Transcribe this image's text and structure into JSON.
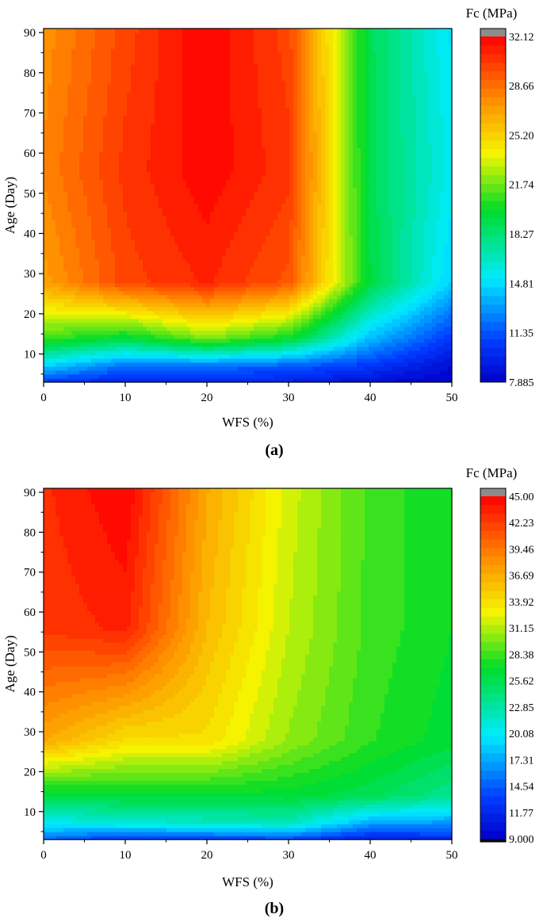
{
  "chart_data": [
    {
      "type": "heatmap",
      "panel_label": "(a)",
      "xlabel": "WFS (%)",
      "ylabel": "Age (Day)",
      "colorbar_title": "Fc (MPa)",
      "x_ticks": [
        "0",
        "10",
        "20",
        "30",
        "40",
        "50"
      ],
      "y_ticks": [
        "10",
        "20",
        "30",
        "40",
        "50",
        "60",
        "70",
        "80",
        "90"
      ],
      "xlim": [
        0,
        50
      ],
      "ylim": [
        3,
        91
      ],
      "zlim": [
        7.885,
        32.12
      ],
      "colorbar_ticks": [
        "7.885",
        "11.35",
        "14.81",
        "18.27",
        "21.74",
        "25.20",
        "28.66",
        "32.12"
      ],
      "x": [
        0,
        10,
        20,
        30,
        40,
        50
      ],
      "y": [
        3,
        7,
        14,
        28,
        56,
        91
      ],
      "z": [
        [
          10.5,
          9.5,
          9.8,
          9.5,
          8.5,
          7.9
        ],
        [
          14.5,
          12.0,
          12.0,
          11.5,
          10.5,
          8.5
        ],
        [
          21.0,
          19.5,
          22.0,
          20.0,
          14.0,
          10.5
        ],
        [
          27.0,
          30.0,
          31.0,
          29.5,
          19.5,
          14.5
        ],
        [
          28.0,
          30.5,
          32.0,
          30.5,
          19.0,
          15.5
        ],
        [
          27.5,
          30.0,
          32.1,
          30.0,
          19.0,
          15.0
        ]
      ]
    },
    {
      "type": "heatmap",
      "panel_label": "(b)",
      "xlabel": "WFS (%)",
      "ylabel": "Age (Day)",
      "colorbar_title": "Fc (MPa)",
      "x_ticks": [
        "0",
        "10",
        "20",
        "30",
        "40",
        "50"
      ],
      "y_ticks": [
        "10",
        "20",
        "30",
        "40",
        "50",
        "60",
        "70",
        "80",
        "90"
      ],
      "xlim": [
        0,
        50
      ],
      "ylim": [
        3,
        91
      ],
      "zlim": [
        9.0,
        45.0
      ],
      "colorbar_ticks": [
        "9.000",
        "11.77",
        "14.54",
        "17.31",
        "20.08",
        "22.85",
        "25.62",
        "28.38",
        "31.15",
        "33.92",
        "36.69",
        "39.46",
        "42.23",
        "45.00"
      ],
      "x": [
        0,
        10,
        20,
        30,
        40,
        50
      ],
      "y": [
        3,
        7,
        14,
        28,
        56,
        91
      ],
      "z": [
        [
          15.0,
          12.5,
          13.0,
          13.5,
          11.0,
          12.0
        ],
        [
          20.0,
          21.0,
          21.5,
          22.0,
          17.0,
          16.5
        ],
        [
          26.0,
          26.5,
          26.5,
          26.5,
          25.5,
          23.5
        ],
        [
          37.0,
          34.0,
          34.0,
          30.5,
          28.0,
          26.5
        ],
        [
          42.5,
          43.5,
          36.0,
          31.5,
          28.5,
          27.0
        ],
        [
          43.0,
          45.0,
          37.0,
          32.0,
          28.5,
          27.0
        ]
      ]
    }
  ]
}
